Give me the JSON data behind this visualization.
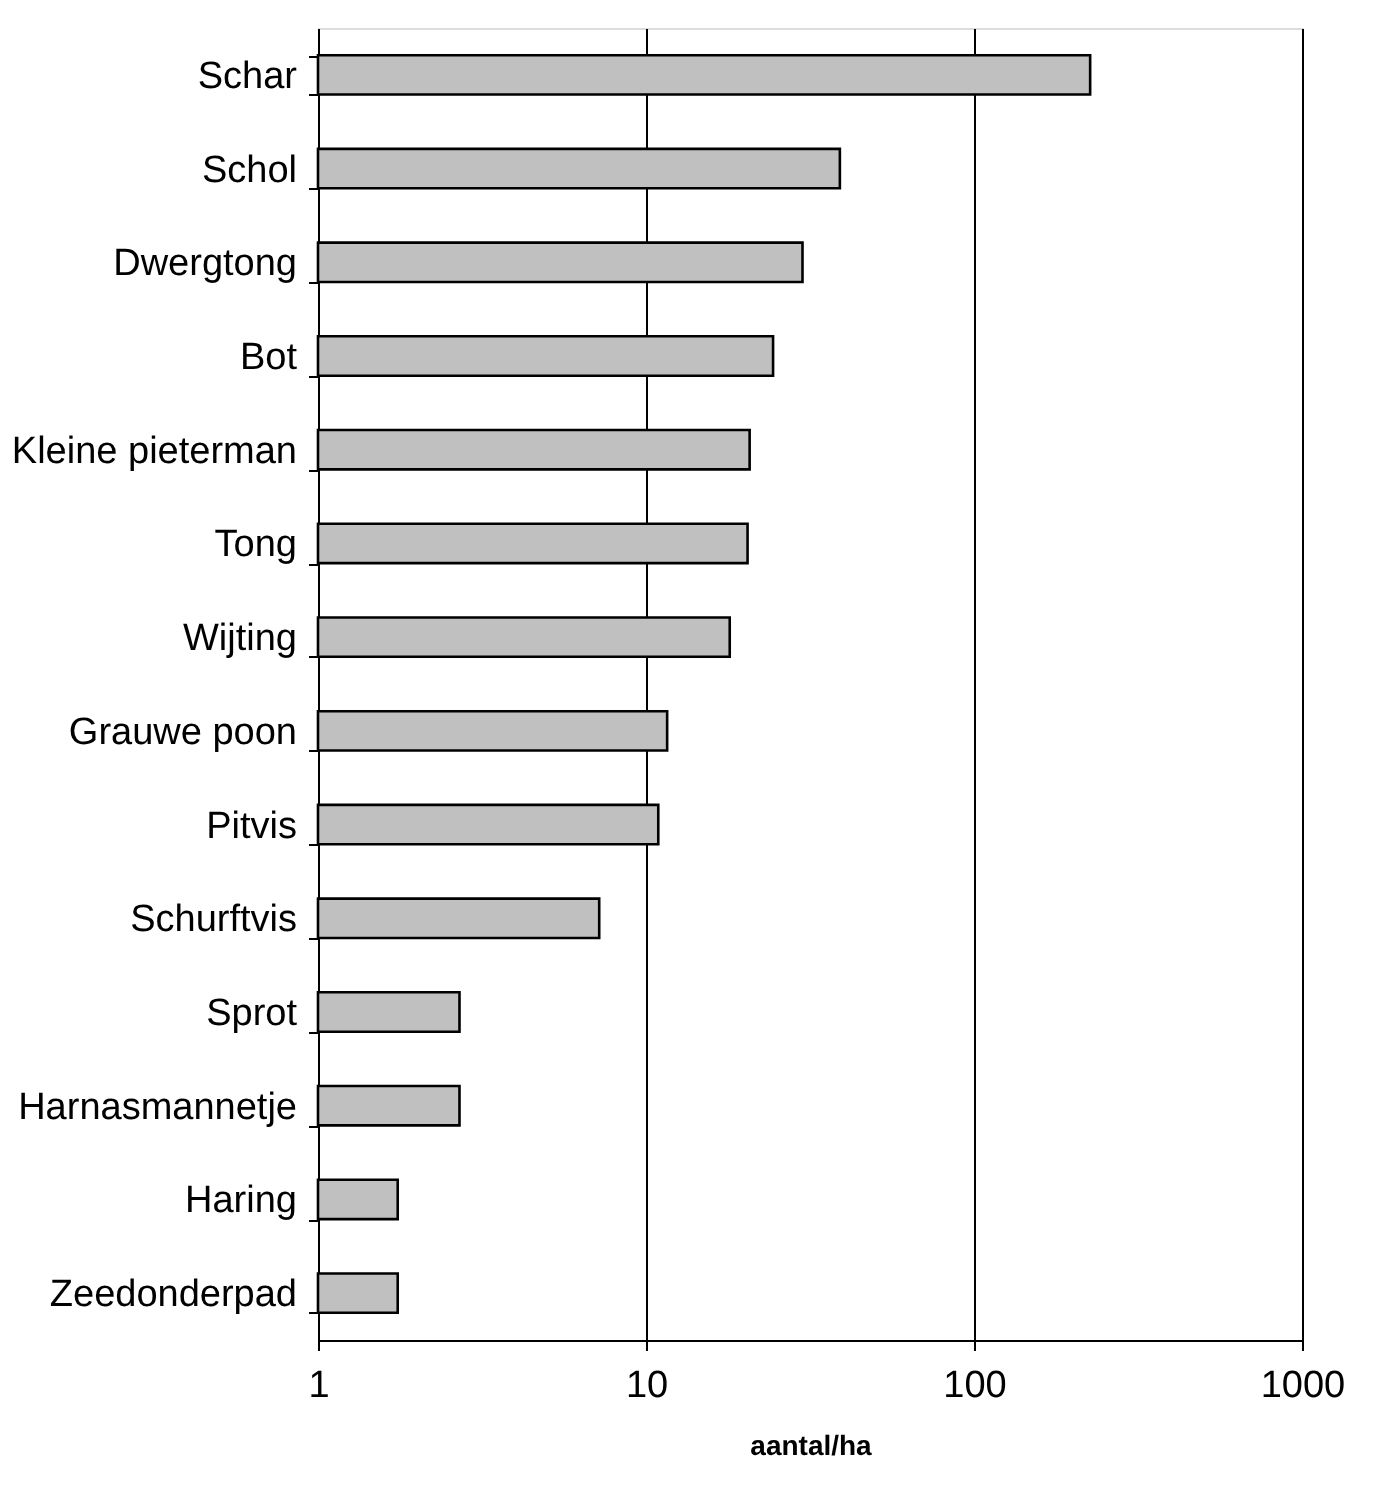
{
  "chart_data": {
    "type": "bar",
    "orientation": "horizontal",
    "log": "x",
    "xlabel": "aantal/ha",
    "categories": [
      "Schar",
      "Schol",
      "Dwergtong",
      "Bot",
      "Kleine pieterman",
      "Tong",
      "Wijting",
      "Grauwe poon",
      "Pitvis",
      "Schurftvis",
      "Sprot",
      "Harnasmannetje",
      "Haring",
      "Zeedonderpad"
    ],
    "values": [
      226,
      39,
      30,
      24.4,
      20.7,
      20.4,
      18,
      11.6,
      10.9,
      7.2,
      2.7,
      2.7,
      1.75,
      1.75
    ],
    "color": "#c0c0c0",
    "xlim": [
      1,
      1000
    ],
    "xticks": [
      1,
      10,
      100,
      1000
    ],
    "grid": "x"
  }
}
